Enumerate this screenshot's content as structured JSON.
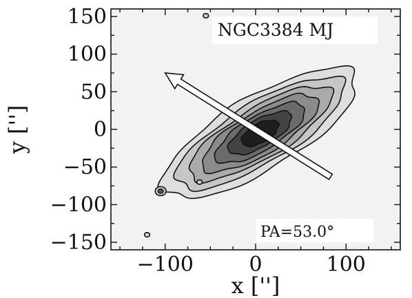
{
  "chart_data": {
    "type": "contour",
    "xlabel": "x ['']",
    "ylabel": "y ['']",
    "xlim": [
      -160,
      160
    ],
    "ylim": [
      -160,
      160
    ],
    "xticks": [
      -100,
      0,
      100
    ],
    "yticks": [
      150,
      100,
      50,
      0,
      -50,
      -100,
      -150
    ],
    "xtick_labels": [
      "−100",
      "0",
      "100"
    ],
    "ytick_labels": [
      "150",
      "100",
      "50",
      "0",
      "−50",
      "−100",
      "−150"
    ],
    "grid": false,
    "annotations": {
      "galaxy_label": "NGC3384 MJ",
      "pa_label": "PA=53.0°"
    },
    "arrow": {
      "from": [
        83,
        -63
      ],
      "to": [
        -100,
        75
      ]
    },
    "contours": {
      "center": [
        5,
        -5
      ],
      "position_angle_deg": 53.0,
      "levels": [
        {
          "a": 130,
          "b": 46,
          "fill": "#dedede"
        },
        {
          "a": 113,
          "b": 38,
          "fill": "#c6c6c6"
        },
        {
          "a": 96,
          "b": 32,
          "fill": "#aaaaaa"
        },
        {
          "a": 78,
          "b": 27,
          "fill": "#8b8b8b"
        },
        {
          "a": 60,
          "b": 22,
          "fill": "#6b6b6b"
        },
        {
          "a": 42,
          "b": 17,
          "fill": "#444444"
        },
        {
          "a": 24,
          "b": 12,
          "fill": "#1e1e1e"
        }
      ],
      "isolated": [
        {
          "x": -55,
          "y": 151,
          "r": 3
        },
        {
          "x": -62,
          "y": -70,
          "r": 3
        },
        {
          "x": -120,
          "y": -140,
          "r": 3
        },
        {
          "x": -105,
          "y": -82,
          "r": 6
        }
      ]
    },
    "colors": {
      "background_fill": "#f2f2f2",
      "contour_line": "#111111",
      "arrow": "#ffffff"
    }
  }
}
